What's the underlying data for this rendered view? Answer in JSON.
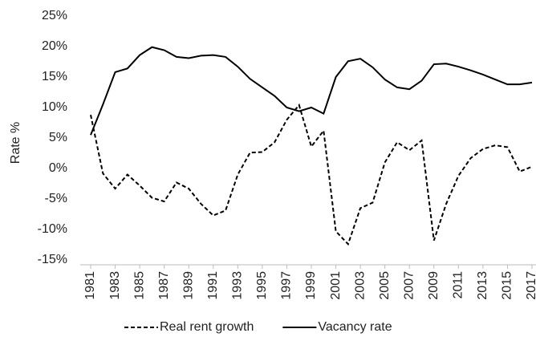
{
  "chart_data": {
    "type": "line",
    "y_label": "Rate %",
    "x": [
      1981,
      1982,
      1983,
      1984,
      1985,
      1986,
      1987,
      1988,
      1989,
      1990,
      1991,
      1992,
      1993,
      1994,
      1995,
      1996,
      1997,
      1998,
      1999,
      2000,
      2001,
      2002,
      2003,
      2004,
      2005,
      2006,
      2007,
      2008,
      2009,
      2010,
      2011,
      2012,
      2013,
      2014,
      2015,
      2016,
      2017
    ],
    "series": [
      {
        "name": "Real rent growth",
        "color": "#000000",
        "dash": true,
        "values": [
          8.8,
          -0.8,
          -3.3,
          -1.0,
          -2.8,
          -4.8,
          -5.4,
          -2.3,
          -3.3,
          -5.8,
          -7.7,
          -6.9,
          -1.0,
          2.6,
          2.7,
          4.3,
          8.0,
          10.4,
          3.6,
          6.2,
          -10.3,
          -12.4,
          -6.5,
          -5.6,
          1.0,
          4.3,
          3.0,
          4.6,
          -11.8,
          -5.8,
          -1.2,
          1.7,
          3.2,
          3.8,
          3.5,
          -0.5,
          0.3
        ]
      },
      {
        "name": "Vacancy rate",
        "color": "#000000",
        "dash": false,
        "values": [
          5.5,
          10.5,
          15.8,
          16.4,
          18.6,
          19.9,
          19.4,
          18.3,
          18.1,
          18.5,
          18.6,
          18.3,
          16.7,
          14.7,
          13.3,
          11.9,
          10.0,
          9.4,
          10.0,
          9.0,
          15.0,
          17.6,
          18.0,
          16.6,
          14.6,
          13.3,
          13.0,
          14.4,
          17.1,
          17.2,
          16.7,
          16.1,
          15.4,
          14.6,
          13.8,
          13.8,
          14.1
        ]
      }
    ],
    "xlim": [
      1981,
      2017
    ],
    "xticks": [
      1981,
      1983,
      1985,
      1987,
      1989,
      1991,
      1993,
      1995,
      1997,
      1999,
      2001,
      2003,
      2005,
      2007,
      2009,
      2011,
      2013,
      2015,
      2017
    ],
    "ylim": [
      -15,
      25
    ],
    "yticks": [
      {
        "value": -15,
        "label": "-15%"
      },
      {
        "value": -10,
        "label": "-10%"
      },
      {
        "value": -5,
        "label": "-5%"
      },
      {
        "value": 0,
        "label": "0%"
      },
      {
        "value": 5,
        "label": "5%"
      },
      {
        "value": 10,
        "label": "10%"
      },
      {
        "value": 15,
        "label": "15%"
      },
      {
        "value": 20,
        "label": "20%"
      },
      {
        "value": 25,
        "label": "25%"
      }
    ],
    "grid": false,
    "legend": "bottom"
  }
}
